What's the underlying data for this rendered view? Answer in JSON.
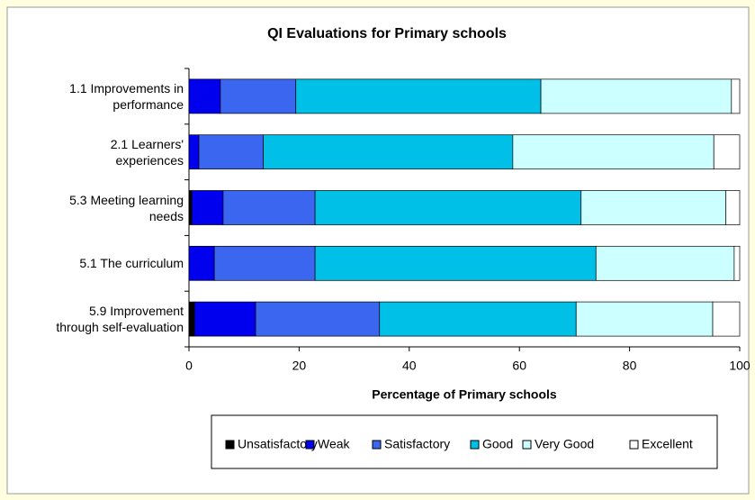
{
  "chart_data": {
    "type": "stacked_bar_horizontal",
    "title": "QI Evaluations for Primary schools",
    "x_label": "Percentage of Primary schools",
    "categories": [
      "1.1 Improvements in\nperformance",
      "2.1 Learners'\nexperiences",
      "5.3 Meeting learning\nneeds",
      "5.1 The curriculum",
      "5.9  Improvement\nthrough self-evaluation"
    ],
    "series": [
      {
        "name": "Unsatisfactory",
        "color": "#000000",
        "values": [
          0,
          0,
          0.5,
          0,
          1.0
        ]
      },
      {
        "name": "Weak",
        "color": "#0000ee",
        "values": [
          5.7,
          1.8,
          5.7,
          4.6,
          11.1
        ]
      },
      {
        "name": "Satisfactory",
        "color": "#3a66f0",
        "values": [
          13.7,
          11.7,
          16.7,
          18.3,
          22.5
        ]
      },
      {
        "name": "Good",
        "color": "#00c0e8",
        "values": [
          44.5,
          45.3,
          48.3,
          51.0,
          35.7
        ]
      },
      {
        "name": "Very Good",
        "color": "#ccffff",
        "values": [
          34.6,
          36.5,
          26.3,
          25.1,
          24.8
        ]
      },
      {
        "name": "Excellent",
        "color": "#ffffff",
        "values": [
          1.5,
          4.7,
          2.5,
          1.0,
          4.9
        ]
      }
    ],
    "xlim": [
      0,
      100
    ],
    "xticks": [
      0,
      20,
      40,
      60,
      80,
      100
    ],
    "grid": false,
    "legend": "bottom"
  }
}
